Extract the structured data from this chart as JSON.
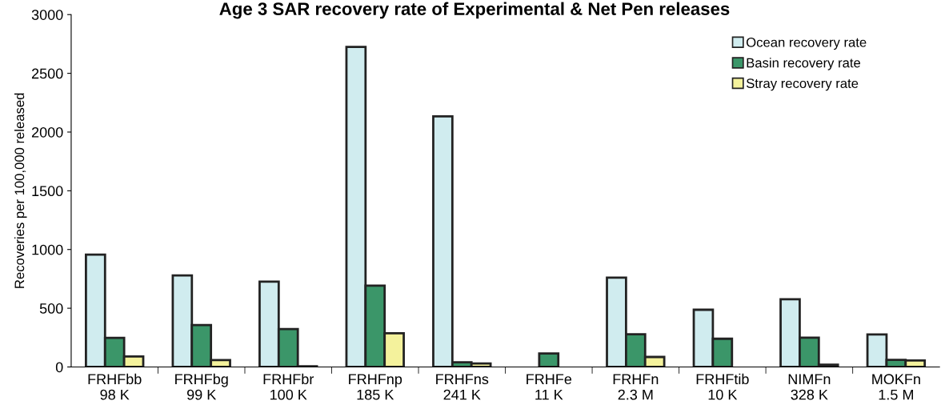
{
  "chart_data": {
    "type": "bar",
    "title": "Age 3 SAR recovery rate of Experimental & Net Pen releases",
    "ylabel": "Recoveries per 100,000 released",
    "categories": [
      "FRHFbb\n98 K",
      "FRHFbg\n99 K",
      "FRHFbr\n100 K",
      "FRHFnp\n185 K",
      "FRHFns\n241 K",
      "FRHFe\n11 K",
      "FRHFn\n2.3 M",
      "FRHFtib\n10 K",
      "NIMFn\n328 K",
      "MOKFn\n1.5 M"
    ],
    "series": [
      {
        "name": "Ocean recovery rate",
        "color": "#d0ecef",
        "values": [
          957,
          779,
          727,
          2725,
          2133,
          null,
          760,
          487,
          576,
          276
        ]
      },
      {
        "name": "Basin recovery rate",
        "color": "#3b9669",
        "values": [
          248,
          357,
          323,
          692,
          40,
          115,
          278,
          240,
          250,
          60
        ]
      },
      {
        "name": "Stray recovery rate",
        "color": "#f4f29c",
        "values": [
          89,
          59,
          5,
          287,
          30,
          null,
          85,
          null,
          20,
          55
        ]
      }
    ],
    "ylim": [
      0,
      3000
    ],
    "yticks": [
      0,
      500,
      1000,
      1500,
      2000,
      2500,
      3000
    ],
    "legend": "top right",
    "grid": false
  }
}
